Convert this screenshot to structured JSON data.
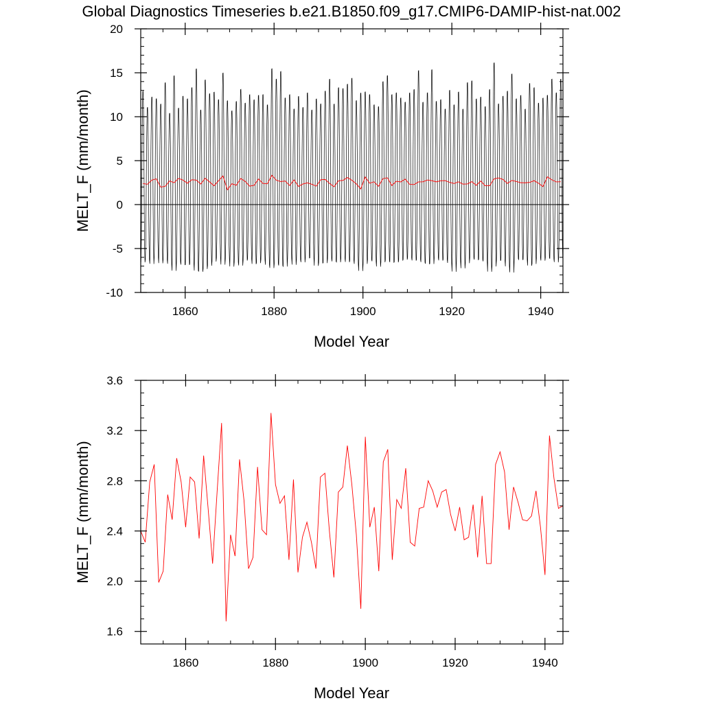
{
  "title": "Global Diagnostics Timeseries b.e21.B1850.f09_g17.CMIP6-DAMIP-hist-nat.002",
  "colors": {
    "monthly": "#000000",
    "annual": "#ff0000",
    "zero_line": "#000000"
  },
  "chart_data": [
    {
      "type": "line",
      "xlabel": "Model Year",
      "ylabel": "MELT_F (mm/month)",
      "xlim": [
        1850,
        1945
      ],
      "ylim": [
        -10,
        20
      ],
      "xticks": [
        1860,
        1880,
        1900,
        1920,
        1940
      ],
      "yticks": [
        -10,
        -5,
        0,
        5,
        10,
        15,
        20
      ],
      "ytick_labels": [
        "-10",
        "-5",
        "0",
        "5",
        "10",
        "15",
        "20"
      ],
      "zero_line": true,
      "grid": false,
      "series": [
        {
          "style": "monthly seasonal cycle",
          "x_start": 1850,
          "months_per_year": 12,
          "seasonal_amplitude": 10,
          "annual_max": [
            13.2,
            11.3,
            12.5,
            12.3,
            11.7,
            14.2,
            10.6,
            15.0,
            11.2,
            12.6,
            12.3,
            13.6,
            15.8,
            11.0,
            14.5,
            12.9,
            13.1,
            12.2,
            15.3,
            12.1,
            10.9,
            12.0,
            13.4,
            11.8,
            12.8,
            12.2,
            12.7,
            12.8,
            11.6,
            15.8,
            14.6,
            15.5,
            12.4,
            12.8,
            11.1,
            12.6,
            11.3,
            13.0,
            11.0,
            12.3,
            11.7,
            13.2,
            14.6,
            11.7,
            13.6,
            13.5,
            14.0,
            14.7,
            12.1,
            13.0,
            13.1,
            12.8,
            11.6,
            11.4,
            14.3,
            15.0,
            12.8,
            13.0,
            12.4,
            11.9,
            13.0,
            13.4,
            15.6,
            11.9,
            13.0,
            15.7,
            12.0,
            12.2,
            11.1,
            13.3,
            11.6,
            13.1,
            11.1,
            14.2,
            14.4,
            12.3,
            12.5,
            11.4,
            13.4,
            16.5,
            11.7,
            12.6,
            13.2,
            15.2,
            12.3,
            12.7,
            11.1,
            14.1,
            13.6,
            11.8,
            12.4,
            12.7,
            14.6,
            13.0,
            14.6
          ],
          "annual_min": [
            -6.8,
            -6.5,
            -7.0,
            -6.2,
            -6.9,
            -6.5,
            -7.0,
            -7.8,
            -6.8,
            -7.1,
            -7.1,
            -7.0,
            -7.8,
            -7.9,
            -7.6,
            -7.2,
            -6.7,
            -6.3,
            -7.1,
            -6.4,
            -7.3,
            -6.8,
            -7.2,
            -6.6,
            -6.4,
            -7.0,
            -6.9,
            -6.5,
            -7.1,
            -7.5,
            -7.0,
            -7.2,
            -7.3,
            -6.3,
            -7.1,
            -6.5,
            -6.8,
            -6.3,
            -6.3,
            -7.2,
            -6.9,
            -6.9,
            -6.4,
            -6.7,
            -6.8,
            -6.4,
            -6.8,
            -6.6,
            -7.0,
            -7.8,
            -7.0,
            -6.5,
            -6.7,
            -7.3,
            -6.8,
            -6.6,
            -6.8,
            -6.8,
            -6.6,
            -6.5,
            -6.3,
            -6.6,
            -6.5,
            -6.8,
            -7.0,
            -7.0,
            -6.3,
            -6.6,
            -6.5,
            -6.9,
            -7.9,
            -6.7,
            -7.5,
            -6.9,
            -6.3,
            -6.5,
            -6.5,
            -6.7,
            -7.9,
            -7.3,
            -6.6,
            -6.6,
            -7.3,
            -8.0,
            -6.4,
            -6.5,
            -6.5,
            -7.2,
            -7.0,
            -6.3,
            -6.6,
            -6.3,
            -6.4,
            -6.8,
            -6.3
          ]
        },
        {
          "style": "annual mean",
          "x": [
            1850,
            1851,
            1852,
            1853,
            1854,
            1855,
            1856,
            1857,
            1858,
            1859,
            1860,
            1861,
            1862,
            1863,
            1864,
            1865,
            1866,
            1867,
            1868,
            1869,
            1870,
            1871,
            1872,
            1873,
            1874,
            1875,
            1876,
            1877,
            1878,
            1879,
            1880,
            1881,
            1882,
            1883,
            1884,
            1885,
            1886,
            1887,
            1888,
            1889,
            1890,
            1891,
            1892,
            1893,
            1894,
            1895,
            1896,
            1897,
            1898,
            1899,
            1900,
            1901,
            1902,
            1903,
            1904,
            1905,
            1906,
            1907,
            1908,
            1909,
            1910,
            1911,
            1912,
            1913,
            1914,
            1915,
            1916,
            1917,
            1918,
            1919,
            1920,
            1921,
            1922,
            1923,
            1924,
            1925,
            1926,
            1927,
            1928,
            1929,
            1930,
            1931,
            1932,
            1933,
            1934,
            1935,
            1936,
            1937,
            1938,
            1939,
            1940,
            1941,
            1942,
            1943,
            1944
          ],
          "values": [
            2.4,
            2.31,
            2.79,
            2.93,
            1.99,
            2.08,
            2.69,
            2.49,
            2.98,
            2.79,
            2.43,
            2.83,
            2.79,
            2.34,
            3.0,
            2.58,
            2.14,
            2.71,
            3.26,
            1.68,
            2.37,
            2.2,
            2.97,
            2.64,
            2.1,
            2.19,
            2.91,
            2.41,
            2.37,
            3.34,
            2.77,
            2.62,
            2.68,
            2.17,
            2.81,
            2.07,
            2.35,
            2.47,
            2.31,
            2.1,
            2.83,
            2.86,
            2.4,
            2.03,
            2.71,
            2.75,
            3.08,
            2.77,
            2.37,
            1.78,
            3.15,
            2.43,
            2.59,
            2.08,
            2.95,
            3.05,
            2.17,
            2.65,
            2.58,
            2.9,
            2.31,
            2.28,
            2.58,
            2.59,
            2.8,
            2.72,
            2.59,
            2.71,
            2.73,
            2.53,
            2.4,
            2.59,
            2.33,
            2.35,
            2.61,
            2.19,
            2.68,
            2.14,
            2.14,
            2.93,
            3.03,
            2.87,
            2.41,
            2.75,
            2.63,
            2.49,
            2.48,
            2.52,
            2.72,
            2.43,
            2.05,
            3.16,
            2.82,
            2.58,
            2.6
          ]
        }
      ]
    },
    {
      "type": "line",
      "xlabel": "Model Year",
      "ylabel": "MELT_F (mm/month)",
      "xlim": [
        1850,
        1944
      ],
      "ylim": [
        1.5,
        3.6
      ],
      "xticks": [
        1860,
        1880,
        1900,
        1920,
        1940
      ],
      "yticks": [
        1.6,
        2.0,
        2.4,
        2.8,
        3.2,
        3.6
      ],
      "ytick_labels": [
        "1.6",
        "2.0",
        "2.4",
        "2.8",
        "3.2",
        "3.6"
      ],
      "zero_line": false,
      "grid": false,
      "series": [
        {
          "style": "annual mean",
          "ref": "top.annual"
        }
      ]
    }
  ]
}
